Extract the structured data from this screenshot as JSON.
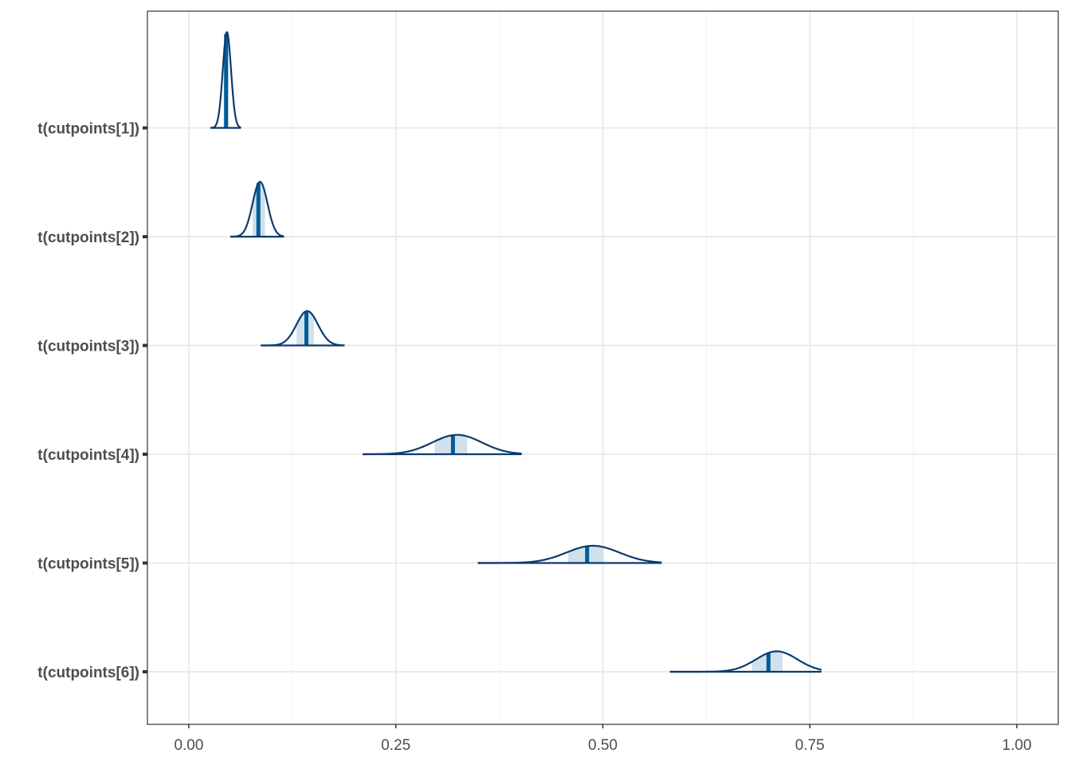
{
  "chart_data": {
    "type": "density-ridges",
    "title": "",
    "xlabel": "",
    "ylabel": "",
    "xlim": [
      -0.05,
      1.05
    ],
    "x_ticks": [
      0.0,
      0.25,
      0.5,
      0.75,
      1.0
    ],
    "x_tick_labels": [
      "0.00",
      "0.25",
      "0.50",
      "0.75",
      "1.00"
    ],
    "grid": true,
    "colors": {
      "outline": "#0b3b6e",
      "median_line": "#005b96",
      "interval_fill": "#d1e1ec",
      "panel_border": "#333333",
      "grid_major": "#ebebeb",
      "grid_minor": "#f3f3f3",
      "tick_text": "#4d4d4d"
    },
    "series": [
      {
        "label": "t(cutpoints[1])",
        "median": 0.045,
        "interval_50": [
          0.042,
          0.048
        ],
        "range": [
          0.026,
          0.063
        ],
        "mode": 0.046,
        "sd": 0.005,
        "relative_height": 0.89
      },
      {
        "label": "t(cutpoints[2])",
        "median": 0.084,
        "interval_50": [
          0.077,
          0.092
        ],
        "range": [
          0.05,
          0.115
        ],
        "mode": 0.086,
        "sd": 0.009,
        "relative_height": 0.51
      },
      {
        "label": "t(cutpoints[3])",
        "median": 0.142,
        "interval_50": [
          0.13,
          0.151
        ],
        "range": [
          0.087,
          0.188
        ],
        "mode": 0.143,
        "sd": 0.013,
        "relative_height": 0.32
      },
      {
        "label": "t(cutpoints[4])",
        "median": 0.319,
        "interval_50": [
          0.297,
          0.336
        ],
        "range": [
          0.21,
          0.402
        ],
        "mode": 0.324,
        "sd": 0.03,
        "relative_height": 0.18
      },
      {
        "label": "t(cutpoints[5])",
        "median": 0.481,
        "interval_50": [
          0.458,
          0.501
        ],
        "range": [
          0.349,
          0.571
        ],
        "mode": 0.488,
        "sd": 0.032,
        "relative_height": 0.16
      },
      {
        "label": "t(cutpoints[6])",
        "median": 0.7,
        "interval_50": [
          0.68,
          0.717
        ],
        "range": [
          0.581,
          0.764
        ],
        "mode": 0.71,
        "sd": 0.025,
        "relative_height": 0.19
      }
    ]
  }
}
